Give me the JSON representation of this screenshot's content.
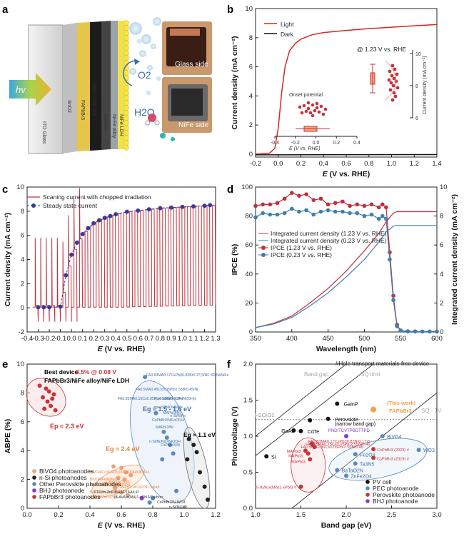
{
  "panels": {
    "a": {
      "label": "a",
      "layers": [
        "ITO Glass",
        "SnO2",
        "FAPbBr3",
        "Spiro-OMeTAD",
        "Carbon",
        "Ni-Fe alloy",
        "NiFe LDH"
      ],
      "hv": "hv",
      "o2": "O2",
      "h2o": "H2O",
      "photo_glass": "Glass side",
      "photo_nife": "NiFe side"
    },
    "b": {
      "label": "b",
      "legend": [
        "Light",
        "Dark"
      ],
      "inset_title": "@ 1.23 V vs. RHE",
      "inset_ylabel": "Current density (mA cm⁻²)",
      "onset_label": "Onset potential",
      "onset_xlabel": "E (V vs. RHE)"
    },
    "c": {
      "label": "c",
      "legend": [
        "Scaning current with chopped irradiation",
        "Steady state current"
      ]
    },
    "d": {
      "label": "d",
      "legend": [
        "Integrated current density (1.23 V vs. RHE)",
        "Integrated current density (0.23 V vs. RHE)",
        "IPCE (1.23 V vs. RHE)",
        "IPCE (0.23 V vs. RHE)"
      ]
    },
    "e": {
      "label": "e",
      "best_title": "Best device",
      "best_value": "8.5% @ 0.08 V",
      "best_device": "FAPbBr3/NiFe alloy/NiFe LDH",
      "ep1": "Ep ≈ 2.3 eV",
      "eg2": "Eg ≈ 2.4 eV",
      "eg3": "Eg ≈ 1.5 - 1.6 eV",
      "eg4": "Eg ≈ 1.1 eV",
      "legend": [
        "BiVO4 photoanodes",
        "n-Si photoanodes",
        "Other Perovskite photoanodes",
        "BHJ photoanode",
        "FAPbBr3 photoanodes"
      ],
      "annotations": [
        "FA0.83MA0.17CsPb(I0.83Br0.17)3/NF:3D Ni/NiFe",
        "FA0.5MA0.45Cs0.05PbI2.55Br0.45/Ni",
        "FA0.85MA0.15Cs0.05PbI2.55Br0.45/FeNi(OH)x",
        "np+-Si/NiFe-LDH",
        "np+-Si/NiOx/NiFe",
        "n-Si/NiFe",
        "n-Si/Ni/NiO/NiOOH",
        "MAPbI3/Ni",
        "CsPbBr3/NiFeOOH",
        "MAPbI3/Ni",
        "CsPbBr3/Ni",
        "BiVO4/Co3O4/TiO2/FeOOH/NiOOH",
        "BiVO4/Fe/NiFeO4",
        "BiVO4/Fe2O3/NiFeOOH",
        "BiVO4/CoZn(CEIO)",
        "BiVO4/ZnCo2O4",
        "BiVO4/Co-Pi",
        "BiVO4/Zn-Cu/Co2O4 Cobalt",
        "FTO/m-ZnO/BHJ/PTAA/LiD",
        "(5-AVA)x(MA)1-xPbI3/Carbon",
        "CsPbBr3/N-WO3",
        "n-Si/NiFeP"
      ]
    },
    "f": {
      "label": "f",
      "top_note": "#Hole transport materials-free device",
      "lines": [
        "Band gap",
        "SQ limit",
        "SQ - 1V",
        "H2O/O2"
      ],
      "this_work": "(This work)",
      "this_work_mat": "FAPbBr3",
      "legend": [
        "PV cell",
        "PEC photoanode",
        "Perovskite photoanode",
        "BHJ photoanode"
      ],
      "pv_labels": [
        "GaInP",
        "Perovskite",
        "(narrow band gap)",
        "GaAs",
        "CdTe",
        "Si"
      ],
      "pec_labels": [
        "BiVO4",
        "Fe2O3",
        "Ta3N5",
        "BaTaO2N",
        "ZnFe2O4",
        "WO3"
      ],
      "pero_labels": [
        "CsPbBr3 (2023) #",
        "CsPbBr3 (2019) #",
        "MAPbI3",
        "MAPbI3",
        "MAPbI3",
        "(5-AVA)x(MA)1-xPbI3 #",
        "FA0.83MA0.17CsPb(I0.83Br0.17)3",
        "FA0.85MA0.15Cs0.05PbI2.55Br0.45",
        "FA0.5MA0.45Cs0.05PbI2.55Br0.45"
      ],
      "bhj_label": "PNDITCVTPBDTTPD"
    }
  },
  "chart_data": [
    {
      "panel": "b",
      "type": "line",
      "xlabel": "E (V vs. RHE)",
      "ylabel": "Current density (mA cm⁻²)",
      "xlim": [
        -0.2,
        1.4
      ],
      "ylim": [
        -0.2,
        10
      ],
      "xticks": [
        -0.2,
        0.0,
        0.2,
        0.4,
        0.6,
        0.8,
        1.0,
        1.2,
        1.4
      ],
      "yticks": [
        0,
        2,
        4,
        6,
        8,
        10
      ],
      "series": [
        {
          "name": "Light",
          "color": "#d62728",
          "x": [
            -0.2,
            -0.08,
            -0.03,
            0.0,
            0.03,
            0.06,
            0.1,
            0.15,
            0.2,
            0.3,
            0.4,
            0.6,
            0.8,
            1.0,
            1.2,
            1.4
          ],
          "y": [
            0,
            0.05,
            0.4,
            1.8,
            4.2,
            6.0,
            7.1,
            7.6,
            7.9,
            8.2,
            8.35,
            8.5,
            8.62,
            8.72,
            8.82,
            8.9
          ]
        },
        {
          "name": "Dark",
          "color": "#111111",
          "x": [
            -0.2,
            1.4
          ],
          "y": [
            -0.05,
            -0.03
          ]
        }
      ],
      "inset_box": {
        "median": 5.5
      },
      "inset_points_center": 5.6,
      "onset_box": {
        "median": -0.1,
        "range": [
          -0.2,
          0.0
        ]
      },
      "inset_yticks": [
        6,
        8,
        10
      ],
      "inset_xticks": [
        -0.4,
        -0.2,
        0.0,
        0.2,
        0.4
      ]
    },
    {
      "panel": "c",
      "type": "line",
      "xlabel": "E (V vs. RHE)",
      "ylabel": "Current density (mA cm⁻²)",
      "xlim": [
        -0.4,
        1.3
      ],
      "ylim": [
        -2,
        10
      ],
      "xticks": [
        -0.4,
        -0.3,
        -0.2,
        -0.1,
        0.0,
        0.1,
        0.2,
        0.3,
        0.4,
        0.5,
        0.6,
        0.7,
        0.8,
        0.9,
        1.0,
        1.1,
        1.2,
        1.3
      ],
      "yticks": [
        -2,
        0,
        2,
        4,
        6,
        8,
        10
      ],
      "series": [
        {
          "name": "Steady state current",
          "color": "#3a3a9a",
          "x": [
            -0.3,
            -0.25,
            -0.2,
            -0.1,
            -0.05,
            0.0,
            0.05,
            0.1,
            0.15,
            0.2,
            0.25,
            0.3,
            0.35,
            0.4,
            0.5,
            0.6,
            0.7,
            0.8,
            0.9,
            1.0,
            1.1,
            1.2,
            1.25
          ],
          "y": [
            0.05,
            0.05,
            0.05,
            0.1,
            2.7,
            4.4,
            5.4,
            6.1,
            6.6,
            7.0,
            7.25,
            7.45,
            7.6,
            7.75,
            7.95,
            8.05,
            8.15,
            8.25,
            8.3,
            8.35,
            8.4,
            8.45,
            8.5
          ]
        }
      ]
    },
    {
      "panel": "d",
      "type": "line",
      "xlabel": "Wavelength (nm)",
      "ylabel": "IPCE (%)",
      "y2label": "Integrated current density (mA cm⁻²)",
      "xlim": [
        350,
        600
      ],
      "ylim": [
        0,
        100
      ],
      "y2lim": [
        0,
        10
      ],
      "xticks": [
        350,
        400,
        450,
        500,
        550,
        600
      ],
      "yticks": [
        0,
        20,
        40,
        60,
        80,
        100
      ],
      "y2ticks": [
        0,
        2,
        4,
        6,
        8,
        10
      ],
      "series": [
        {
          "name": "IPCE (1.23 V vs. RHE)",
          "color": "#c0303a",
          "x": [
            350,
            360,
            370,
            380,
            390,
            400,
            410,
            420,
            430,
            440,
            450,
            460,
            470,
            480,
            490,
            500,
            510,
            520,
            525,
            530,
            535,
            540,
            545,
            550,
            560,
            570,
            580,
            590,
            600
          ],
          "y": [
            87,
            88,
            88,
            89,
            92,
            96,
            94,
            95,
            91,
            92,
            88,
            89,
            90,
            87,
            88,
            87,
            88,
            86,
            88,
            86,
            55,
            25,
            5,
            1,
            0.5,
            0.4,
            0.3,
            0.3,
            0.3
          ]
        },
        {
          "name": "IPCE (0.23 V vs. RHE)",
          "color": "#3f7fae",
          "x": [
            350,
            360,
            370,
            380,
            390,
            400,
            410,
            420,
            430,
            440,
            450,
            460,
            470,
            480,
            490,
            500,
            510,
            520,
            525,
            530,
            535,
            540,
            545,
            550,
            560,
            570,
            580,
            590,
            600
          ],
          "y": [
            79,
            82,
            81,
            81,
            82,
            85,
            83,
            84,
            81,
            83,
            84,
            83,
            83,
            82,
            82,
            80,
            81,
            78,
            80,
            78,
            50,
            22,
            4,
            1,
            0.4,
            0.3,
            0.3,
            0.3,
            0.3
          ]
        },
        {
          "name": "Integrated current density (1.23 V vs. RHE)",
          "axis": "y2",
          "color": "#c0303a",
          "x": [
            350,
            375,
            400,
            425,
            450,
            475,
            500,
            520,
            530,
            540,
            545,
            550,
            600
          ],
          "y": [
            0.3,
            0.6,
            1.1,
            2.0,
            3.0,
            4.2,
            5.6,
            6.8,
            7.6,
            8.2,
            8.3,
            8.3,
            8.3
          ]
        },
        {
          "name": "Integrated current density (0.23 V vs. RHE)",
          "axis": "y2",
          "color": "#3f7fae",
          "x": [
            350,
            375,
            400,
            425,
            450,
            475,
            500,
            520,
            530,
            540,
            545,
            550,
            600
          ],
          "y": [
            0.3,
            0.55,
            1.0,
            1.8,
            2.7,
            3.8,
            5.0,
            6.2,
            6.9,
            7.3,
            7.35,
            7.35,
            7.35
          ]
        }
      ]
    },
    {
      "panel": "e",
      "type": "scatter",
      "xlabel": "E (V vs. RHE)",
      "ylabel": "ABPE (%)",
      "xlim": [
        0.0,
        1.2
      ],
      "ylim": [
        0,
        10
      ],
      "xticks": [
        0.0,
        0.2,
        0.4,
        0.6,
        0.8,
        1.0,
        1.2
      ],
      "yticks": [
        0,
        2,
        4,
        6,
        8,
        10
      ],
      "series": [
        {
          "name": "FAPbBr3 photoanodes",
          "color": "#c8333a",
          "x": [
            0.08,
            0.12,
            0.14,
            0.17,
            0.1,
            0.13,
            0.15,
            0.18,
            0.11,
            0.16
          ],
          "y": [
            8.5,
            8.3,
            8.1,
            7.9,
            7.7,
            7.4,
            7.1,
            6.8,
            6.9,
            7.6
          ]
        },
        {
          "name": "BiVO4 photoanodes",
          "color": "#f0a070",
          "x": [
            0.55,
            0.6,
            0.63,
            0.66,
            0.58,
            0.62,
            0.5,
            0.56,
            0.6,
            0.64
          ],
          "y": [
            2.9,
            2.8,
            2.5,
            2.3,
            2.1,
            2.0,
            1.7,
            1.4,
            1.1,
            0.9
          ]
        },
        {
          "name": "n-Si photoanodes",
          "color": "#222222",
          "x": [
            1.03,
            1.06,
            1.08,
            1.02,
            1.1,
            1.13,
            1.15
          ],
          "y": [
            4.8,
            4.4,
            3.9,
            3.4,
            2.5,
            1.5,
            0.6
          ]
        },
        {
          "name": "Other Perovskite photoanodes",
          "color": "#5b88c0",
          "x": [
            0.75,
            0.82,
            0.87,
            0.89,
            0.91,
            0.93,
            0.86,
            0.8,
            0.78,
            0.95
          ],
          "y": [
            9.1,
            6.6,
            5.3,
            4.9,
            4.4,
            3.8,
            3.4,
            0.7,
            0.4,
            1.2
          ]
        },
        {
          "name": "BHJ photoanode",
          "color": "#8a3ad0",
          "x": [
            0.73
          ],
          "y": [
            0.7
          ]
        }
      ]
    },
    {
      "panel": "f",
      "type": "scatter",
      "xlabel": "Band gap (eV)",
      "ylabel": "Photovoltage (V)",
      "xlim": [
        1.0,
        3.0
      ],
      "ylim": [
        0,
        2
      ],
      "xticks": [
        1.0,
        1.5,
        2.0,
        2.5,
        3.0
      ],
      "yticks": [
        0.0,
        0.5,
        1.0,
        1.5,
        2.0
      ],
      "series": [
        {
          "name": "PV cell",
          "color": "#111111",
          "x": [
            1.12,
            1.42,
            1.5,
            1.6,
            1.8,
            1.9
          ],
          "y": [
            0.72,
            1.08,
            1.07,
            1.22,
            1.24,
            1.45
          ]
        },
        {
          "name": "PEC photoanode",
          "color": "#5b88c0",
          "x": [
            2.4,
            2.1,
            2.1,
            1.9,
            2.0,
            2.8
          ],
          "y": [
            1.0,
            0.75,
            0.62,
            0.53,
            0.45,
            0.81
          ]
        },
        {
          "name": "Perovskite photoanode",
          "color": "#c8333a",
          "x": [
            2.3,
            2.3,
            1.55,
            1.58,
            1.6,
            1.5,
            1.62,
            1.63,
            1.65
          ],
          "y": [
            0.82,
            0.7,
            0.8,
            0.76,
            0.68,
            0.3,
            0.9,
            0.88,
            0.85
          ]
        },
        {
          "name": "FAPbBr3 (This work)",
          "color": "#f5a04a",
          "x": [
            2.3
          ],
          "y": [
            1.37
          ]
        },
        {
          "name": "BHJ photoanode",
          "color": "#8a3ad0",
          "x": [
            2.0
          ],
          "y": [
            1.0
          ]
        }
      ]
    }
  ]
}
